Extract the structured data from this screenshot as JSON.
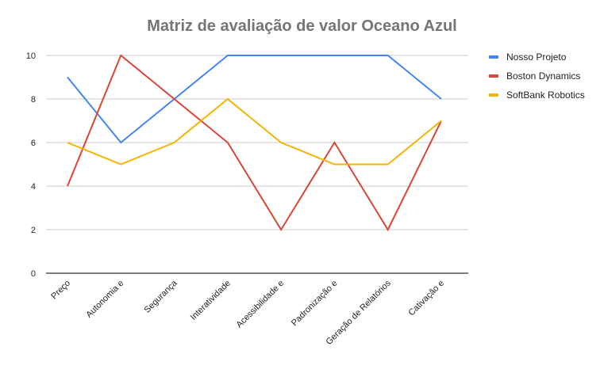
{
  "chart_data": {
    "type": "line",
    "title": "Matriz de avaliação de valor Oceano Azul",
    "xlabel": "",
    "ylabel": "",
    "ylim": [
      0,
      10
    ],
    "yticks": [
      0,
      2,
      4,
      6,
      8,
      10
    ],
    "grid": true,
    "legend_position": "right",
    "categories": [
      "Preço",
      "Autonomia e",
      "Segurança",
      "Interatividade",
      "Acessibilidade e",
      "Padronização e",
      "Geração de Relatórios",
      "Cativação e"
    ],
    "series": [
      {
        "name": "Nosso Projeto",
        "color": "#4285f4",
        "values": [
          9,
          6,
          8,
          10,
          10,
          10,
          10,
          8
        ]
      },
      {
        "name": "Boston Dynamics",
        "color": "#db4437",
        "values": [
          4,
          10,
          8,
          6,
          2,
          6,
          2,
          7
        ]
      },
      {
        "name": "SoftBank Robotics",
        "color": "#f4b400",
        "values": [
          6,
          5,
          6,
          8,
          6,
          5,
          5,
          7
        ]
      }
    ]
  }
}
